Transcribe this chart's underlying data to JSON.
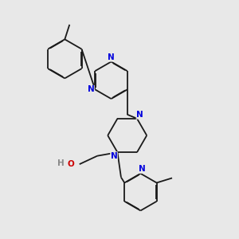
{
  "bg_color": "#e8e8e8",
  "bond_color": "#1a1a1a",
  "n_color": "#0000dd",
  "o_color": "#cc0000",
  "h_color": "#888888",
  "lw": 1.3,
  "dbo": 0.012,
  "fs": 7.5,
  "figsize": [
    3.0,
    3.0
  ],
  "dpi": 100,
  "xlim": [
    0,
    10
  ],
  "ylim": [
    0,
    10
  ]
}
